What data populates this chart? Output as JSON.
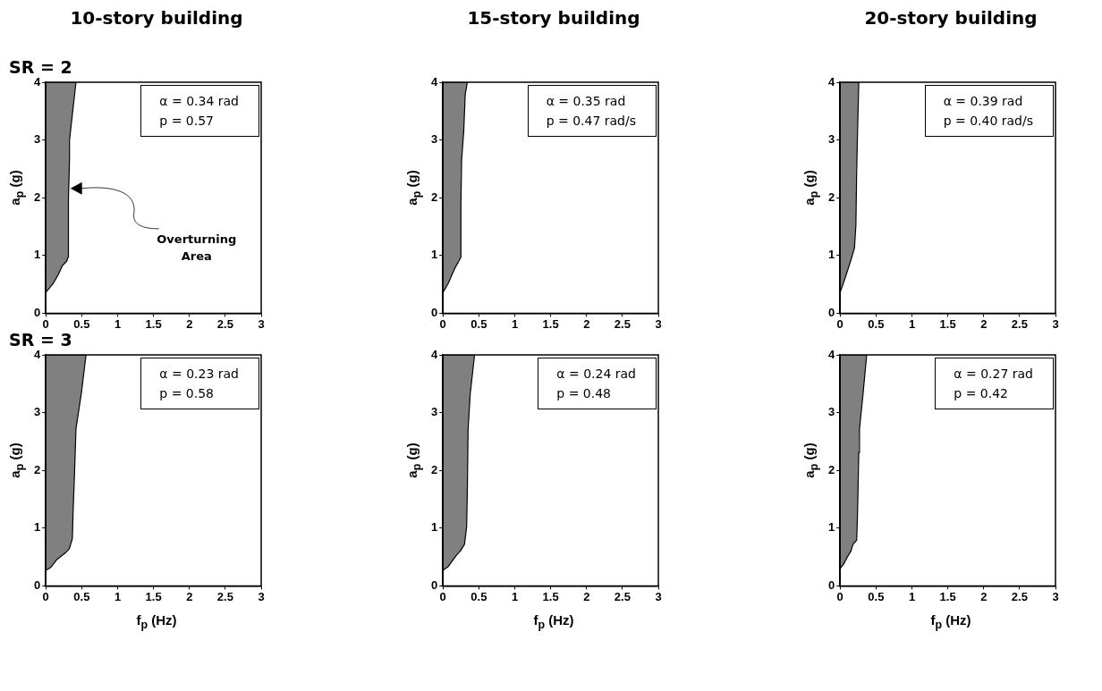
{
  "chart_data": [
    {
      "type": "area",
      "title": "10-story building",
      "subtitle": "SR = 2",
      "ylabel": "a$_{p}$ (g)",
      "xlim": [
        0,
        3
      ],
      "ylim": [
        0,
        4
      ],
      "xticks": [
        0,
        0.5,
        1,
        1.5,
        2,
        2.5,
        3
      ],
      "yticks": [
        0,
        1,
        2,
        3,
        4
      ],
      "grid": false,
      "legend": false,
      "series": [
        {
          "color": "#808080",
          "x": [
            0,
            0.1,
            0.17,
            0.23,
            0.29,
            0.31,
            0.31,
            0.32,
            0.33,
            0.33,
            0.42,
            0
          ],
          "values": [
            0.36,
            0.51,
            0.66,
            0.82,
            0.9,
            0.97,
            1.18,
            2.0,
            2.66,
            3.0,
            4.0,
            4.0
          ]
        }
      ],
      "annotations": [
        "α = 0.34 rad",
        "p = 0.57",
        "Overturning Area"
      ]
    },
    {
      "type": "area",
      "title": "15-story building",
      "ylabel": "a$_{p}$ (g)",
      "xlim": [
        0,
        3
      ],
      "ylim": [
        0,
        4
      ],
      "xticks": [
        0,
        0.5,
        1,
        1.5,
        2,
        2.5,
        3
      ],
      "yticks": [
        0,
        1,
        2,
        3,
        4
      ],
      "grid": false,
      "legend": false,
      "series": [
        {
          "color": "#808080",
          "x": [
            0,
            0.07,
            0.17,
            0.22,
            0.25,
            0.25,
            0.25,
            0.26,
            0.29,
            0.31,
            0.34,
            0
          ],
          "values": [
            0.36,
            0.51,
            0.79,
            0.9,
            0.97,
            1.33,
            1.89,
            2.66,
            3.17,
            3.79,
            4.0,
            4.0
          ]
        }
      ],
      "annotations": [
        "α = 0.35 rad",
        "p = 0.47 rad/s"
      ]
    },
    {
      "type": "area",
      "title": "20-story building",
      "ylabel": "a$_{p}$ (g)",
      "xlim": [
        0,
        3
      ],
      "ylim": [
        0,
        4
      ],
      "xticks": [
        0,
        0.5,
        1,
        1.5,
        2,
        2.5,
        3
      ],
      "yticks": [
        0,
        1,
        2,
        3,
        4
      ],
      "grid": false,
      "legend": false,
      "series": [
        {
          "color": "#808080",
          "x": [
            0,
            0.07,
            0.15,
            0.2,
            0.22,
            0.23,
            0.24,
            0.26,
            0
          ],
          "values": [
            0.36,
            0.61,
            0.92,
            1.13,
            1.53,
            2.4,
            3.0,
            4.0,
            4.0
          ]
        }
      ],
      "annotations": [
        "α = 0.39 rad",
        "p = 0.40 rad/s"
      ]
    },
    {
      "type": "area",
      "subtitle": "SR = 3",
      "xlabel": "f$_{p}$ (Hz)",
      "ylabel": "a$_{p}$ (g)",
      "xlim": [
        0,
        3
      ],
      "ylim": [
        0,
        4
      ],
      "xticks": [
        0,
        0.5,
        1,
        1.5,
        2,
        2.5,
        3
      ],
      "yticks": [
        0,
        1,
        2,
        3,
        4
      ],
      "grid": false,
      "legend": false,
      "series": [
        {
          "color": "#808080",
          "x": [
            0,
            0.07,
            0.15,
            0.22,
            0.28,
            0.31,
            0.33,
            0.37,
            0.38,
            0.4,
            0.42,
            0.5,
            0.56,
            0
          ],
          "values": [
            0.27,
            0.32,
            0.45,
            0.52,
            0.58,
            0.62,
            0.65,
            0.82,
            1.28,
            1.95,
            2.72,
            3.38,
            4.0,
            4.0
          ]
        }
      ],
      "annotations": [
        "α = 0.23 rad",
        "p = 0.58"
      ]
    },
    {
      "type": "area",
      "xlabel": "f$_{p}$ (Hz)",
      "ylabel": "a$_{p}$ (g)",
      "xlim": [
        0,
        3
      ],
      "ylim": [
        0,
        4
      ],
      "xticks": [
        0,
        0.5,
        1,
        1.5,
        2,
        2.5,
        3
      ],
      "yticks": [
        0,
        1,
        2,
        3,
        4
      ],
      "grid": false,
      "legend": false,
      "series": [
        {
          "color": "#808080",
          "x": [
            0,
            0.07,
            0.14,
            0.2,
            0.24,
            0.3,
            0.33,
            0.34,
            0.35,
            0.38,
            0.44,
            0
          ],
          "values": [
            0.27,
            0.33,
            0.45,
            0.55,
            0.6,
            0.72,
            1.03,
            1.69,
            2.72,
            3.33,
            4.0,
            4.0
          ]
        }
      ],
      "annotations": [
        "α = 0.24 rad",
        "p = 0.48"
      ]
    },
    {
      "type": "area",
      "xlabel": "f$_{p}$ (Hz)",
      "ylabel": "a$_{p}$ (g)",
      "xlim": [
        0,
        3
      ],
      "ylim": [
        0,
        4
      ],
      "xticks": [
        0,
        0.5,
        1,
        1.5,
        2,
        2.5,
        3
      ],
      "yticks": [
        0,
        1,
        2,
        3,
        4
      ],
      "grid": false,
      "legend": false,
      "series": [
        {
          "color": "#808080",
          "x": [
            0,
            0.05,
            0.1,
            0.15,
            0.18,
            0.23,
            0.24,
            0.25,
            0.26,
            0.27,
            0.32,
            0.37,
            0
          ],
          "values": [
            0.3,
            0.38,
            0.5,
            0.6,
            0.72,
            0.79,
            1.13,
            1.69,
            2.31,
            2.72,
            3.33,
            4.0,
            4.0
          ]
        }
      ],
      "annotations": [
        "α = 0.27 rad",
        "p = 0.42"
      ]
    }
  ]
}
